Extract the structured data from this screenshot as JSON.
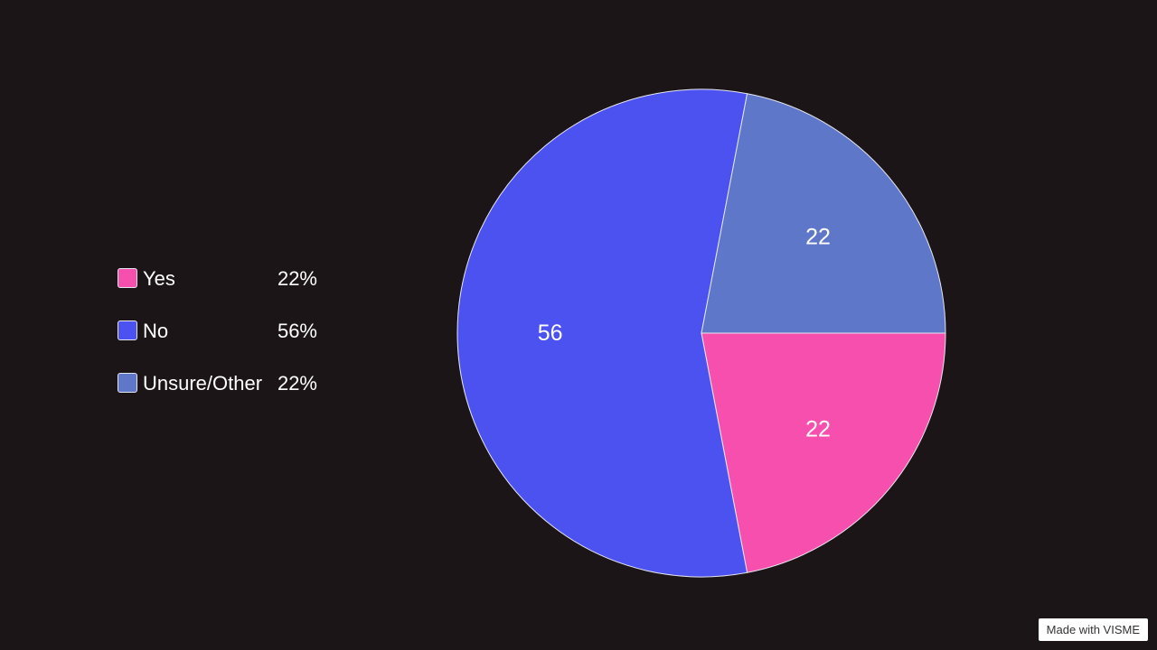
{
  "chart_data": {
    "type": "pie",
    "categories": [
      "Yes",
      "No",
      "Unsure/Other"
    ],
    "values": [
      22,
      56,
      22
    ],
    "percent_labels": [
      "22%",
      "56%",
      "22%"
    ],
    "slice_labels": [
      "22",
      "56",
      "22"
    ],
    "colors": [
      "#f74fae",
      "#4c52ef",
      "#5f77c8"
    ],
    "legend_position": "left"
  },
  "legend": {
    "items": [
      {
        "label": "Yes",
        "value": "22%"
      },
      {
        "label": "No",
        "value": "56%"
      },
      {
        "label": "Unsure/Other",
        "value": "22%"
      }
    ]
  },
  "watermark": "Made with VISME"
}
